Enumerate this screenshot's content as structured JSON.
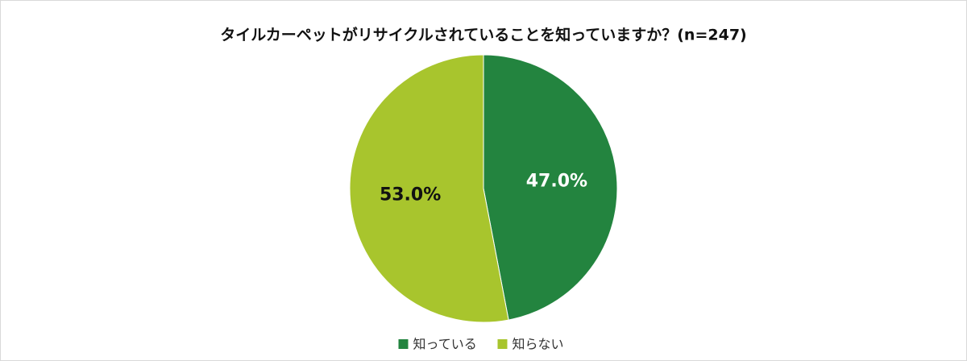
{
  "chart_data": {
    "type": "pie",
    "title": "タイルカーペットがリサイクルされていることを知っていますか？(n=247)",
    "categories": [
      "知っている",
      "知らない"
    ],
    "values": [
      47.0,
      53.0
    ],
    "value_labels": [
      "47.0%",
      "53.0%"
    ],
    "colors": [
      "#23843f",
      "#a8c52d"
    ],
    "legend": "bottom"
  }
}
